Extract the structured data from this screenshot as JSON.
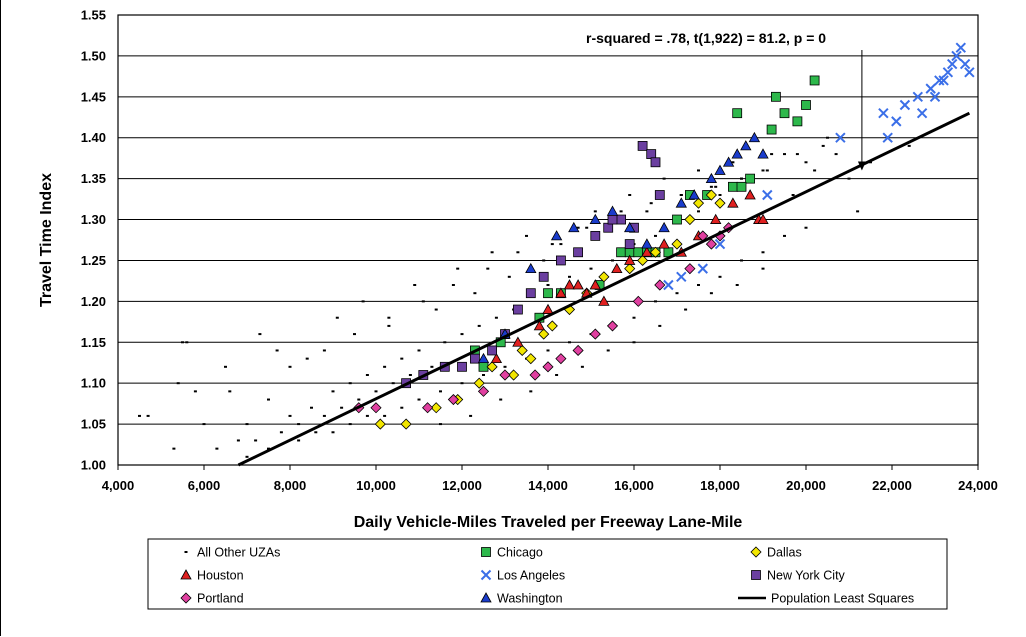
{
  "chart_data": {
    "type": "scatter",
    "xlabel": "Daily Vehicle-Miles Traveled per Freeway Lane-Mile",
    "ylabel": "Travel Time Index",
    "xlim": [
      4000,
      24000
    ],
    "ylim": [
      1.0,
      1.55
    ],
    "x_ticks": [
      "4,000",
      "6,000",
      "8,000",
      "10,000",
      "12,000",
      "14,000",
      "16,000",
      "18,000",
      "20,000",
      "22,000",
      "24,000"
    ],
    "y_ticks": [
      "1.00",
      "1.05",
      "1.10",
      "1.15",
      "1.20",
      "1.25",
      "1.30",
      "1.35",
      "1.40",
      "1.45",
      "1.50",
      "1.55"
    ],
    "grid": "horizontal",
    "annotation": {
      "text": "r-squared = .78, t(1,922) = 81.2, p = 0",
      "arrow_to": [
        21300,
        1.36
      ]
    },
    "regression_line": {
      "name": "Population Least Squares",
      "from": [
        6800,
        1.0
      ],
      "to": [
        23800,
        1.43
      ]
    },
    "legend_position": "bottom",
    "series": [
      {
        "name": "All Other UZAs",
        "marker": "dot",
        "color": "#000000",
        "x": [
          4500,
          4700,
          5300,
          5500,
          5800,
          6000,
          6300,
          6600,
          6800,
          7000,
          7200,
          7500,
          7800,
          8000,
          8200,
          8500,
          8800,
          9000,
          9200,
          9400,
          9600,
          9800,
          10000,
          10200,
          10400,
          10600,
          10800,
          11000,
          11300,
          11600,
          12000,
          12400,
          12800,
          13200,
          13600,
          14000,
          14500,
          15000,
          15500,
          16000,
          16500,
          17000,
          17500,
          18000,
          18500,
          19000,
          19500,
          20000,
          20500,
          21000,
          7000,
          7500,
          8200,
          8600,
          9000,
          9400,
          9800,
          10200,
          10600,
          11000,
          11500,
          12000,
          12500,
          13000,
          13500,
          14000,
          14500,
          15000,
          15500,
          16000,
          16500,
          17000,
          17500,
          18000,
          18500,
          19000,
          19500,
          20000,
          21200,
          5400,
          5600,
          6500,
          7300,
          7700,
          8400,
          9100,
          9700,
          10300,
          10900,
          11400,
          11900,
          12300,
          12700,
          13100,
          13500,
          13900,
          14300,
          14700,
          15100,
          15500,
          15900,
          16300,
          16700,
          17100,
          17500,
          17900,
          18300,
          18700,
          19200,
          19700,
          20200,
          20700,
          21500,
          22400,
          11500,
          12200,
          12900,
          13600,
          14200,
          14800,
          15400,
          16000,
          16600,
          17200,
          17800,
          18400,
          19000,
          8000,
          8800,
          9500,
          10300,
          11100,
          11800,
          12600,
          13300,
          14100,
          14900,
          15700,
          16400,
          17100,
          17800,
          18500,
          19100,
          19800,
          20400
        ],
        "y": [
          1.06,
          1.06,
          1.02,
          1.15,
          1.09,
          1.05,
          1.02,
          1.09,
          1.03,
          1.05,
          1.03,
          1.08,
          1.04,
          1.06,
          1.05,
          1.07,
          1.06,
          1.09,
          1.07,
          1.1,
          1.08,
          1.11,
          1.09,
          1.12,
          1.1,
          1.13,
          1.11,
          1.14,
          1.12,
          1.15,
          1.16,
          1.17,
          1.18,
          1.19,
          1.21,
          1.22,
          1.23,
          1.24,
          1.25,
          1.27,
          1.28,
          1.3,
          1.31,
          1.33,
          1.35,
          1.36,
          1.38,
          1.37,
          1.4,
          1.35,
          1.01,
          1.02,
          1.03,
          1.04,
          1.04,
          1.05,
          1.06,
          1.06,
          1.07,
          1.08,
          1.09,
          1.1,
          1.11,
          1.12,
          1.13,
          1.14,
          1.15,
          1.16,
          1.17,
          1.18,
          1.2,
          1.21,
          1.22,
          1.23,
          1.25,
          1.26,
          1.28,
          1.29,
          1.31,
          1.1,
          1.15,
          1.12,
          1.16,
          1.14,
          1.13,
          1.18,
          1.2,
          1.17,
          1.22,
          1.19,
          1.24,
          1.21,
          1.26,
          1.23,
          1.28,
          1.25,
          1.27,
          1.29,
          1.31,
          1.3,
          1.33,
          1.31,
          1.35,
          1.33,
          1.36,
          1.34,
          1.37,
          1.35,
          1.38,
          1.33,
          1.36,
          1.38,
          1.37,
          1.39,
          1.05,
          1.06,
          1.08,
          1.09,
          1.11,
          1.12,
          1.14,
          1.15,
          1.17,
          1.19,
          1.21,
          1.22,
          1.24,
          1.12,
          1.14,
          1.16,
          1.18,
          1.2,
          1.22,
          1.24,
          1.26,
          1.27,
          1.29,
          1.31,
          1.32,
          1.33,
          1.34,
          1.35,
          1.36,
          1.38,
          1.39
        ]
      },
      {
        "name": "Chicago",
        "marker": "square",
        "color": "#2db84b",
        "x": [
          12300,
          12500,
          12900,
          13800,
          14000,
          14300,
          15200,
          15700,
          15900,
          16100,
          16300,
          16500,
          16800,
          17000,
          17300,
          17700,
          18300,
          18700,
          18500,
          19200,
          19300,
          19500,
          19800,
          20000,
          20200,
          18400
        ],
        "y": [
          1.14,
          1.12,
          1.15,
          1.18,
          1.21,
          1.21,
          1.22,
          1.26,
          1.26,
          1.26,
          1.26,
          1.26,
          1.26,
          1.3,
          1.33,
          1.33,
          1.34,
          1.35,
          1.34,
          1.41,
          1.45,
          1.43,
          1.42,
          1.44,
          1.47,
          1.43
        ]
      },
      {
        "name": "Dallas",
        "marker": "diamond",
        "color": "#f2e600",
        "x": [
          10100,
          10700,
          11400,
          11900,
          12400,
          12700,
          13200,
          13400,
          13600,
          13900,
          14100,
          14500,
          14900,
          15300,
          15900,
          16200,
          16500,
          17000,
          17300,
          17500,
          17800,
          18000
        ],
        "y": [
          1.05,
          1.05,
          1.07,
          1.08,
          1.1,
          1.12,
          1.11,
          1.14,
          1.13,
          1.16,
          1.17,
          1.19,
          1.21,
          1.23,
          1.24,
          1.25,
          1.26,
          1.27,
          1.3,
          1.32,
          1.33,
          1.32
        ]
      },
      {
        "name": "Houston",
        "marker": "triangle",
        "color": "#e02020",
        "x": [
          12800,
          13300,
          13800,
          14000,
          14300,
          14500,
          14700,
          14900,
          15100,
          15300,
          15600,
          15900,
          16300,
          16700,
          17100,
          17500,
          17900,
          18300,
          18700,
          18900,
          19000
        ],
        "y": [
          1.13,
          1.15,
          1.17,
          1.19,
          1.21,
          1.22,
          1.22,
          1.21,
          1.22,
          1.2,
          1.24,
          1.25,
          1.26,
          1.27,
          1.26,
          1.28,
          1.3,
          1.32,
          1.33,
          1.3,
          1.3
        ]
      },
      {
        "name": "Los Angeles",
        "marker": "x",
        "color": "#3b6fe8",
        "x": [
          16800,
          17100,
          17600,
          18000,
          19100,
          20800,
          21800,
          22100,
          22600,
          22900,
          23100,
          23300,
          23500,
          23700,
          23800,
          21900,
          22300,
          22700,
          23000,
          23200,
          23400,
          23600
        ],
        "y": [
          1.22,
          1.23,
          1.24,
          1.27,
          1.33,
          1.4,
          1.43,
          1.42,
          1.45,
          1.46,
          1.47,
          1.48,
          1.5,
          1.49,
          1.48,
          1.4,
          1.44,
          1.43,
          1.45,
          1.47,
          1.49,
          1.51
        ]
      },
      {
        "name": "New York City",
        "marker": "square",
        "color": "#6b3fa0",
        "x": [
          10700,
          11100,
          11600,
          12000,
          12300,
          12700,
          13000,
          13300,
          13600,
          13900,
          14300,
          14700,
          15100,
          15400,
          15700,
          16000,
          16200,
          16400,
          16500,
          16600,
          15900,
          15500
        ],
        "y": [
          1.1,
          1.11,
          1.12,
          1.12,
          1.13,
          1.14,
          1.16,
          1.19,
          1.21,
          1.23,
          1.25,
          1.26,
          1.28,
          1.29,
          1.3,
          1.29,
          1.39,
          1.38,
          1.37,
          1.33,
          1.27,
          1.3
        ]
      },
      {
        "name": "Portland",
        "marker": "diamond",
        "color": "#e040a0",
        "x": [
          9600,
          10000,
          11200,
          11800,
          12500,
          13000,
          13700,
          14000,
          14300,
          14700,
          15100,
          15500,
          16100,
          16600,
          17300,
          17600,
          17800,
          18000,
          18200
        ],
        "y": [
          1.07,
          1.07,
          1.07,
          1.08,
          1.09,
          1.11,
          1.11,
          1.12,
          1.13,
          1.14,
          1.16,
          1.17,
          1.2,
          1.22,
          1.24,
          1.28,
          1.27,
          1.28,
          1.29
        ]
      },
      {
        "name": "Washington",
        "marker": "triangle",
        "color": "#1a3ccc",
        "x": [
          12500,
          13000,
          13600,
          14200,
          14600,
          15100,
          15500,
          15900,
          16300,
          16700,
          17100,
          17400,
          17800,
          18000,
          18200,
          18400,
          18600,
          18800,
          19000
        ],
        "y": [
          1.13,
          1.16,
          1.24,
          1.28,
          1.29,
          1.3,
          1.31,
          1.29,
          1.27,
          1.29,
          1.32,
          1.33,
          1.35,
          1.36,
          1.37,
          1.38,
          1.39,
          1.4,
          1.38
        ]
      }
    ],
    "legend": [
      {
        "label": "All Other UZAs",
        "marker": "dot",
        "color": "#000000"
      },
      {
        "label": "Chicago",
        "marker": "square",
        "color": "#2db84b"
      },
      {
        "label": "Dallas",
        "marker": "diamond",
        "color": "#f2e600"
      },
      {
        "label": "Houston",
        "marker": "triangle",
        "color": "#e02020"
      },
      {
        "label": "Los Angeles",
        "marker": "x",
        "color": "#3b6fe8"
      },
      {
        "label": "New York City",
        "marker": "square",
        "color": "#6b3fa0"
      },
      {
        "label": "Portland",
        "marker": "diamond",
        "color": "#e040a0"
      },
      {
        "label": "Washington",
        "marker": "triangle",
        "color": "#1a3ccc"
      },
      {
        "label": "Population Least Squares",
        "marker": "line",
        "color": "#000000"
      }
    ]
  }
}
